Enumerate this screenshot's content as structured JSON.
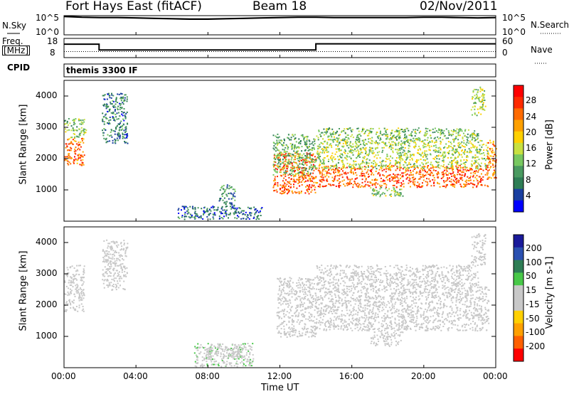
{
  "header": {
    "station": "Fort Hays East (fitACF)",
    "beam": "Beam 18",
    "date": "02/Nov/2011"
  },
  "sky_panel": {
    "left_label": "N.Sky",
    "left_ticks": [
      "10^5",
      "10^0"
    ],
    "right_label": "N.Search",
    "right_ticks": [
      "10^5",
      "10^0"
    ]
  },
  "freq_panel": {
    "left_label_1": "Freq.",
    "left_label_2": "[MHz]",
    "left_ticks": [
      "18",
      "8"
    ],
    "right_label": "Nave",
    "right_ticks": [
      "60",
      "0"
    ]
  },
  "cpid": {
    "label": "CPID",
    "value": "themis 3300 IF"
  },
  "colors": {
    "power_scale": [
      "#0000ff",
      "#1a3fa0",
      "#2e7d55",
      "#4a9a60",
      "#78c860",
      "#c8e040",
      "#ffd000",
      "#ffa000",
      "#ff6a00",
      "#ff2a00",
      "#ff0000"
    ],
    "velocity_scale": [
      "#1a1a9a",
      "#2a50b0",
      "#2e7d55",
      "#48c848",
      "#c8c8c8",
      "#c8c8c8",
      "#ffd000",
      "#ffa000",
      "#ff6000",
      "#ff0000"
    ]
  },
  "chart_data": [
    {
      "type": "line",
      "title": "N.Sky / N.Search",
      "x_unit": "hours UT",
      "xlim": [
        0,
        24
      ],
      "series": [
        {
          "name": "N.Sky",
          "x": [
            0,
            1,
            2,
            3,
            4,
            5,
            6,
            7,
            8,
            9,
            10,
            11,
            12,
            13,
            14,
            15,
            16,
            17,
            18,
            19,
            20,
            21,
            22,
            23,
            24
          ],
          "values": [
            4.8,
            4.6,
            4.5,
            4.5,
            4.4,
            4.3,
            4.2,
            4.1,
            4.1,
            4.2,
            4.3,
            4.4,
            4.5,
            4.6,
            4.6,
            4.5,
            4.5,
            4.5,
            4.5,
            4.5,
            4.6,
            4.6,
            4.5,
            4.4,
            4.5
          ]
        }
      ]
    },
    {
      "type": "line",
      "title": "Freq. [MHz] / Nave",
      "x_unit": "hours UT",
      "xlim": [
        0,
        24
      ],
      "series": [
        {
          "name": "Freq.",
          "x": [
            0,
            1.95,
            1.95,
            14.0,
            14.0,
            24
          ],
          "values": [
            15.5,
            15.5,
            11.0,
            11.0,
            15.8,
            15.8
          ]
        },
        {
          "name": "Nave",
          "x": [
            0,
            24
          ],
          "values": [
            19,
            19
          ]
        }
      ]
    },
    {
      "type": "heatmap",
      "title": "Power",
      "xlabel": "Time UT",
      "ylabel": "Slant Range [km]",
      "colorbar_label": "Power [dB]",
      "x_ticks": [
        "00:00",
        "04:00",
        "08:00",
        "12:00",
        "16:00",
        "20:00",
        "00:00"
      ],
      "y_ticks": [
        "1000",
        "2000",
        "3000",
        "4000"
      ],
      "colorbar_ticks": [
        "4",
        "8",
        "12",
        "16",
        "20",
        "24",
        "28"
      ],
      "xlim": [
        0,
        24
      ],
      "ylim": [
        0,
        4500
      ],
      "clim": [
        0,
        30
      ],
      "regions": [
        {
          "t0": 0.0,
          "t1": 1.1,
          "r0": 1800,
          "r1": 2700,
          "level": 23
        },
        {
          "t0": 0.0,
          "t1": 1.2,
          "r0": 2700,
          "r1": 3300,
          "level": 12
        },
        {
          "t0": 2.1,
          "t1": 3.5,
          "r0": 2500,
          "r1": 4100,
          "level": 7
        },
        {
          "t0": 6.3,
          "t1": 11.0,
          "r0": 80,
          "r1": 500,
          "level": 6
        },
        {
          "t0": 8.6,
          "t1": 9.5,
          "r0": 400,
          "r1": 1200,
          "level": 8
        },
        {
          "t0": 11.6,
          "t1": 14.0,
          "r0": 900,
          "r1": 2200,
          "level": 24
        },
        {
          "t0": 11.6,
          "t1": 14.0,
          "r0": 1500,
          "r1": 2800,
          "level": 11
        },
        {
          "t0": 14.0,
          "t1": 23.6,
          "r0": 1100,
          "r1": 1800,
          "level": 24
        },
        {
          "t0": 14.0,
          "t1": 23.6,
          "r0": 1700,
          "r1": 2600,
          "level": 14
        },
        {
          "t0": 14.0,
          "t1": 23.0,
          "r0": 2600,
          "r1": 3000,
          "level": 12
        },
        {
          "t0": 17.0,
          "t1": 18.8,
          "r0": 800,
          "r1": 1100,
          "level": 13
        },
        {
          "t0": 23.5,
          "t1": 24.0,
          "r0": 1400,
          "r1": 2600,
          "level": 22
        },
        {
          "t0": 22.6,
          "t1": 23.4,
          "r0": 3400,
          "r1": 4300,
          "level": 14
        }
      ]
    },
    {
      "type": "heatmap",
      "title": "Velocity",
      "xlabel": "Time UT",
      "ylabel": "Slant Range [km]",
      "colorbar_label": "Velocity [m s-1]",
      "x_ticks": [
        "00:00",
        "04:00",
        "08:00",
        "12:00",
        "16:00",
        "20:00",
        "00:00"
      ],
      "y_ticks": [
        "1000",
        "2000",
        "3000",
        "4000"
      ],
      "colorbar_ticks": [
        "200",
        "100",
        "50",
        "15",
        "-15",
        "-50",
        "-100",
        "-200"
      ],
      "xlim": [
        0,
        24
      ],
      "ylim": [
        0,
        4500
      ],
      "clim": [
        -250,
        250
      ],
      "regions": [
        {
          "t0": 0.0,
          "t1": 1.1,
          "r0": 1800,
          "r1": 3300,
          "level": 0
        },
        {
          "t0": 2.1,
          "t1": 3.5,
          "r0": 2500,
          "r1": 4100,
          "level": 0
        },
        {
          "t0": 7.2,
          "t1": 10.5,
          "r0": 50,
          "r1": 800,
          "level": -40
        },
        {
          "t0": 7.8,
          "t1": 10.0,
          "r0": 300,
          "r1": 700,
          "level": 30
        },
        {
          "t0": 11.8,
          "t1": 14.0,
          "r0": 1000,
          "r1": 2900,
          "level": 30
        },
        {
          "t0": 14.0,
          "t1": 23.6,
          "r0": 1200,
          "r1": 2600,
          "level": 0
        },
        {
          "t0": 14.0,
          "t1": 23.0,
          "r0": 2600,
          "r1": 3300,
          "level": 0
        },
        {
          "t0": 17.0,
          "t1": 18.8,
          "r0": 700,
          "r1": 1200,
          "level": 0
        },
        {
          "t0": 22.6,
          "t1": 23.4,
          "r0": 3300,
          "r1": 4300,
          "level": 0
        }
      ]
    }
  ]
}
